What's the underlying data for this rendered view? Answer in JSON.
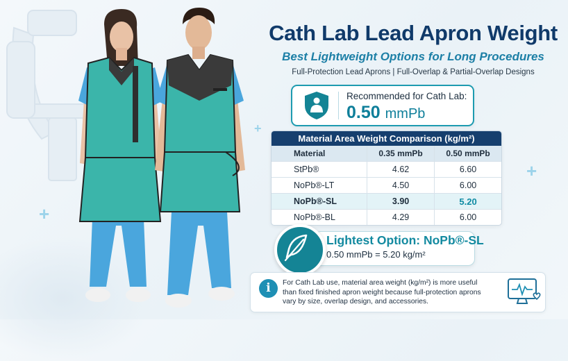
{
  "title": "Cath Lab Lead Apron Weight",
  "subtitle": "Best Lightweight Options for Long Procedures",
  "subline": "Full-Protection Lead Aprons | Full-Overlap & Partial-Overlap Designs",
  "recommendation": {
    "label": "Recommended for Cath Lab:",
    "value": "0.50",
    "unit": "mmPb",
    "icon": "shield-person-icon"
  },
  "table": {
    "title": "Material Area Weight Comparison (kg/m²)",
    "headers": [
      "Material",
      "0.35 mmPb",
      "0.50 mmPb"
    ],
    "rows": [
      [
        "StPb®",
        "4.62",
        "6.60"
      ],
      [
        "NoPb®-LT",
        "4.50",
        "6.00"
      ],
      [
        "NoPb®-SL",
        "3.90",
        "5.20"
      ],
      [
        "NoPb®-BL",
        "4.29",
        "6.00"
      ]
    ],
    "highlighted_row": 2
  },
  "lightest": {
    "title": "Lightest Option: NoPb®-SL",
    "detail": "0.50 mmPb = 5.20 kg/m²",
    "icon": "feather-icon"
  },
  "info": {
    "icon": "info-icon",
    "icon_char": "i",
    "text": "For Cath Lab use, material area weight (kg/m²) is more useful than fixed finished apron weight because full-protection aprons vary by size, overlap design, and accessories."
  },
  "colors": {
    "navy": "#163f6e",
    "teal": "#148495",
    "apron": "#3bb5aa",
    "scrubs": "#4aa6dd"
  }
}
